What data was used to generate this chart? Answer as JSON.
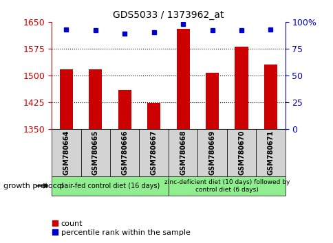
{
  "title": "GDS5033 / 1373962_at",
  "samples": [
    "GSM780664",
    "GSM780665",
    "GSM780666",
    "GSM780667",
    "GSM780668",
    "GSM780669",
    "GSM780670",
    "GSM780671"
  ],
  "count_values": [
    1517,
    1517,
    1460,
    1422,
    1630,
    1507,
    1580,
    1530
  ],
  "percentile_values": [
    93,
    92,
    89,
    90,
    98,
    92,
    92,
    93
  ],
  "ylim_left": [
    1350,
    1650
  ],
  "ylim_right": [
    0,
    100
  ],
  "yticks_left": [
    1350,
    1425,
    1500,
    1575,
    1650
  ],
  "yticks_right": [
    0,
    25,
    50,
    75,
    100
  ],
  "bar_color": "#cc0000",
  "dot_color": "#0000cc",
  "left_axis_color": "#cc0000",
  "right_axis_color": "#0000cc",
  "group1_label": "pair-fed control diet (16 days)",
  "group2_label": "zinc-deficient diet (10 days) followed by\ncontrol diet (6 days)",
  "group1_color": "#90ee90",
  "group2_color": "#90ee90",
  "sample_box_color": "#d3d3d3",
  "protocol_label": "growth protocol",
  "legend_count_label": "count",
  "legend_percentile_label": "percentile rank within the sample",
  "bar_width": 0.45,
  "figsize": [
    4.85,
    3.54
  ],
  "dpi": 100
}
